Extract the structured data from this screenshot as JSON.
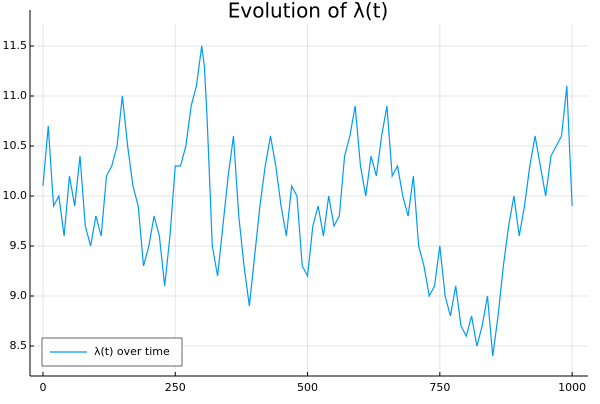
{
  "chart_data": {
    "type": "line",
    "title": "Evolution of λ(t)",
    "x": [
      0,
      10,
      20,
      30,
      40,
      50,
      60,
      70,
      80,
      90,
      100,
      110,
      120,
      130,
      140,
      150,
      160,
      170,
      180,
      190,
      200,
      210,
      220,
      230,
      240,
      250,
      260,
      270,
      280,
      290,
      300,
      305,
      310,
      320,
      330,
      340,
      350,
      360,
      370,
      380,
      390,
      400,
      410,
      420,
      430,
      440,
      450,
      460,
      470,
      480,
      490,
      500,
      510,
      520,
      530,
      540,
      550,
      560,
      570,
      580,
      590,
      600,
      610,
      620,
      630,
      640,
      650,
      660,
      670,
      680,
      690,
      700,
      710,
      720,
      730,
      740,
      750,
      760,
      770,
      780,
      790,
      800,
      810,
      820,
      830,
      840,
      850,
      860,
      870,
      880,
      890,
      900,
      910,
      920,
      930,
      940,
      950,
      960,
      970,
      980,
      990,
      1000
    ],
    "series": [
      {
        "name": "λ(t) over time",
        "color": "#009af9",
        "values": [
          10.1,
          10.7,
          9.9,
          10.0,
          9.6,
          10.2,
          9.9,
          10.4,
          9.7,
          9.5,
          9.8,
          9.6,
          10.2,
          10.3,
          10.5,
          11.0,
          10.5,
          10.1,
          9.9,
          9.3,
          9.5,
          9.8,
          9.6,
          9.1,
          9.6,
          10.3,
          10.3,
          10.5,
          10.9,
          11.1,
          11.5,
          11.3,
          10.8,
          9.5,
          9.2,
          9.7,
          10.2,
          10.6,
          9.8,
          9.3,
          8.9,
          9.4,
          9.9,
          10.3,
          10.6,
          10.3,
          9.9,
          9.6,
          10.1,
          10.0,
          9.3,
          9.2,
          9.7,
          9.9,
          9.6,
          10.0,
          9.7,
          9.8,
          10.4,
          10.6,
          10.9,
          10.3,
          10.0,
          10.4,
          10.2,
          10.6,
          10.9,
          10.2,
          10.3,
          10.0,
          9.8,
          10.2,
          9.5,
          9.3,
          9.0,
          9.1,
          9.5,
          9.0,
          8.8,
          9.1,
          8.7,
          8.6,
          8.8,
          8.5,
          8.7,
          9.0,
          8.4,
          8.8,
          9.3,
          9.7,
          10.0,
          9.6,
          9.9,
          10.3,
          10.6,
          10.3,
          10.0,
          10.4,
          10.5,
          10.6,
          11.1,
          9.9
        ]
      }
    ],
    "xlim": [
      -24.5,
      1030
    ],
    "ylim": [
      8.2,
      11.72
    ],
    "xticks": [
      0,
      250,
      500,
      750,
      1000
    ],
    "yticks": [
      8.5,
      9.0,
      9.5,
      10.0,
      10.5,
      11.0,
      11.5
    ],
    "grid": true,
    "legend": "bottom-left"
  }
}
